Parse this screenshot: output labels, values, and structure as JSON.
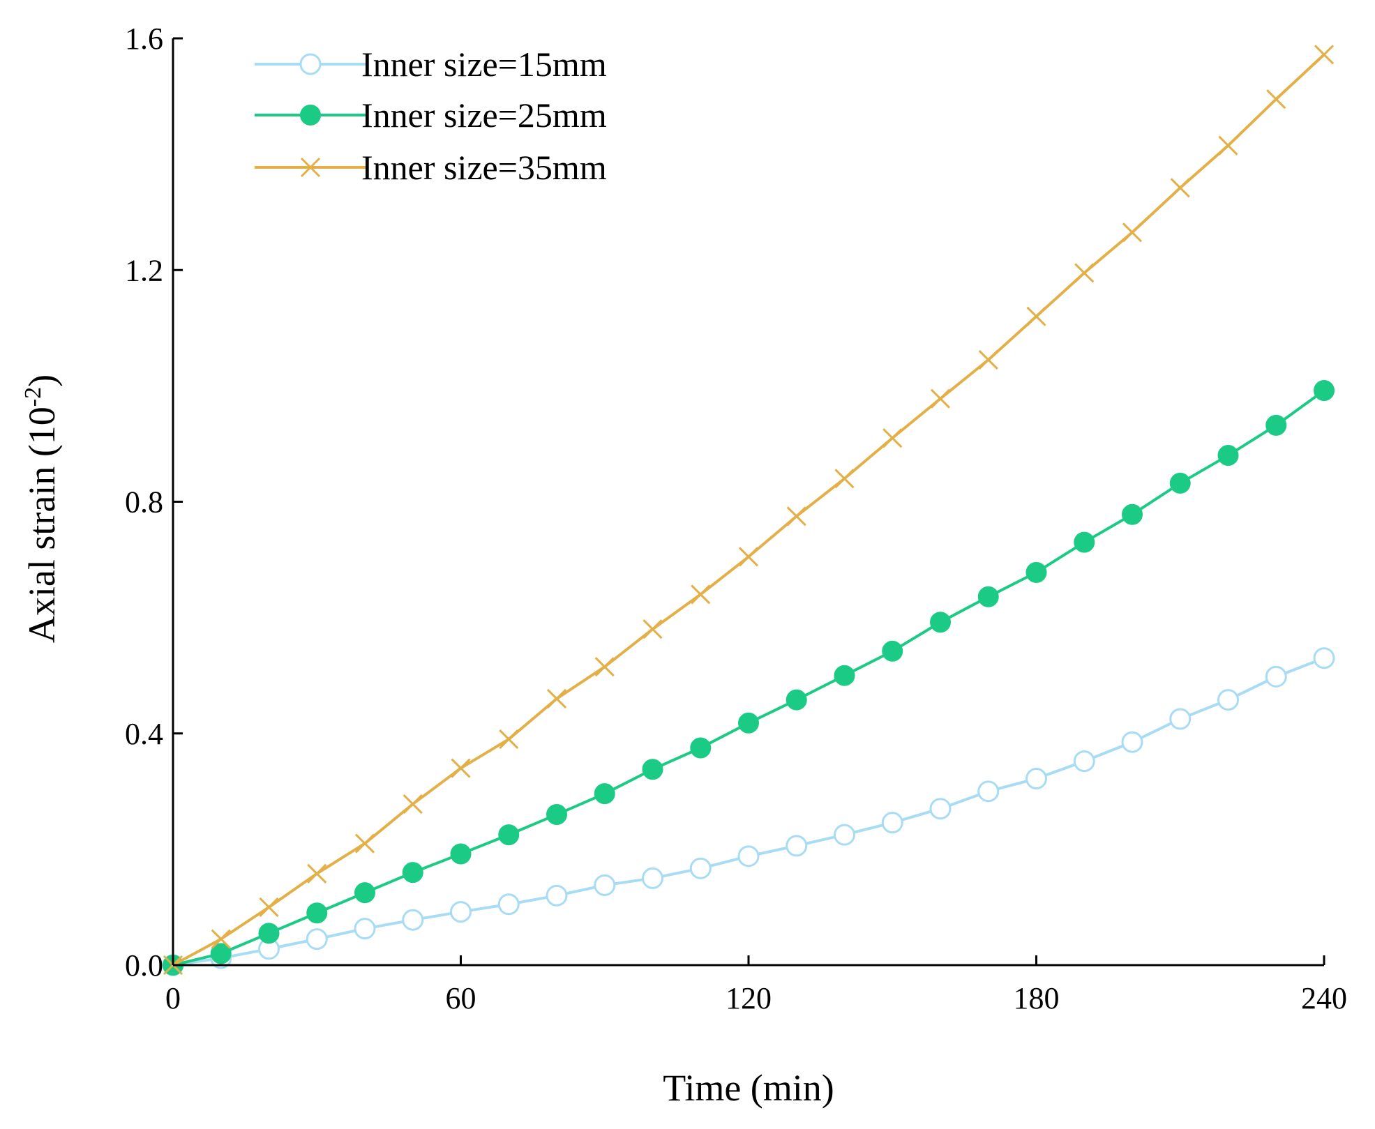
{
  "chart_data": {
    "type": "line",
    "title": "",
    "xlabel": "Time (min)",
    "ylabel_main": "Axial strain (10",
    "ylabel_exp": "-2",
    "ylabel_end": ")",
    "xlim": [
      0,
      240
    ],
    "ylim": [
      0,
      1.6
    ],
    "xticks": [
      0,
      60,
      120,
      180,
      240
    ],
    "xtick_labels": [
      "0",
      "60",
      "120",
      "180",
      "240"
    ],
    "yticks": [
      0,
      0.4,
      0.8,
      1.2,
      1.6
    ],
    "ytick_labels": [
      "0.0",
      "0.4",
      "0.8",
      "1.2",
      "1.6"
    ],
    "grid": false,
    "legend_position": "top-left",
    "x": [
      0,
      10,
      20,
      30,
      40,
      50,
      60,
      70,
      80,
      90,
      100,
      110,
      120,
      130,
      140,
      150,
      160,
      170,
      180,
      190,
      200,
      210,
      220,
      230,
      240
    ],
    "series": [
      {
        "name": "Inner size=15mm",
        "color": "#a7dcf4",
        "marker": "open-circle",
        "values": [
          0,
          0.012,
          0.028,
          0.045,
          0.063,
          0.078,
          0.092,
          0.105,
          0.12,
          0.138,
          0.15,
          0.167,
          0.188,
          0.206,
          0.225,
          0.246,
          0.27,
          0.3,
          0.322,
          0.352,
          0.385,
          0.425,
          0.458,
          0.498,
          0.53
        ]
      },
      {
        "name": "Inner size=25mm",
        "color": "#1bcb85",
        "marker": "filled-circle",
        "values": [
          0,
          0.02,
          0.055,
          0.09,
          0.125,
          0.16,
          0.192,
          0.225,
          0.26,
          0.296,
          0.338,
          0.375,
          0.418,
          0.458,
          0.5,
          0.542,
          0.592,
          0.636,
          0.678,
          0.73,
          0.778,
          0.832,
          0.88,
          0.932,
          0.992
        ]
      },
      {
        "name": "Inner size=35mm",
        "color": "#e3af47",
        "marker": "x",
        "values": [
          0,
          0.045,
          0.1,
          0.158,
          0.21,
          0.278,
          0.34,
          0.39,
          0.46,
          0.515,
          0.58,
          0.64,
          0.705,
          0.775,
          0.84,
          0.91,
          0.978,
          1.045,
          1.12,
          1.195,
          1.265,
          1.342,
          1.415,
          1.495,
          1.572
        ]
      }
    ]
  }
}
